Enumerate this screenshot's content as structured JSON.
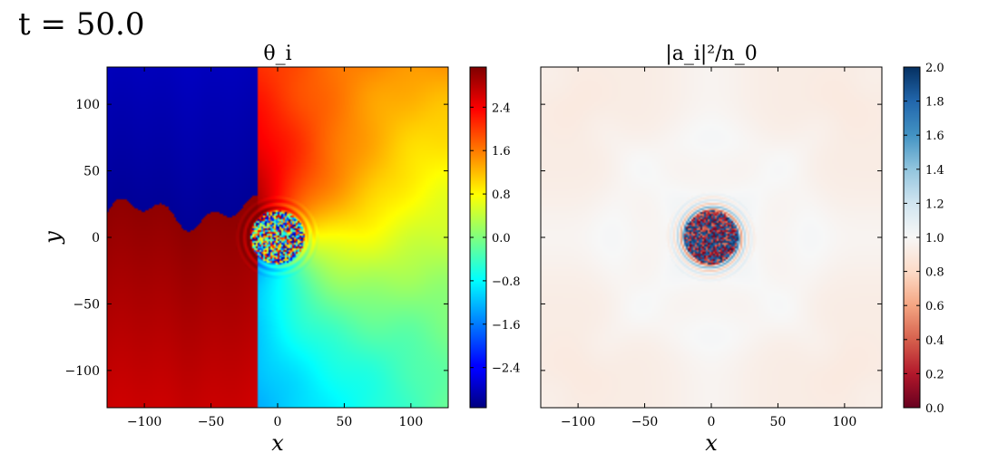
{
  "figure": {
    "time_label": "t = 50.0"
  },
  "chart_data": [
    {
      "type": "heatmap",
      "title": "θ_i",
      "xlabel": "x",
      "ylabel": "y",
      "xlim": [
        -128,
        128
      ],
      "ylim": [
        -128,
        128
      ],
      "xticks": [
        -100,
        -50,
        0,
        50,
        100
      ],
      "xtick_labels": [
        "−100",
        "−50",
        "0",
        "50",
        "100"
      ],
      "yticks": [
        -100,
        -50,
        0,
        50,
        100
      ],
      "ytick_labels": [
        "−100",
        "−50",
        "0",
        "50",
        "100"
      ],
      "colorscale": "jet",
      "vlim": [
        -3.14,
        3.14
      ],
      "colorbar_ticks": [
        -2.4,
        -1.6,
        -0.8,
        0.0,
        0.8,
        1.6,
        2.4
      ],
      "colorbar_tick_labels": [
        "−2.4",
        "−1.6",
        "−0.8",
        "0.0",
        "0.8",
        "1.6",
        "2.4"
      ],
      "core_radius": 20,
      "grid": false
    },
    {
      "type": "heatmap",
      "title": "|a_i|²/n_0",
      "xlabel": "x",
      "ylabel": "",
      "xlim": [
        -128,
        128
      ],
      "ylim": [
        -128,
        128
      ],
      "xticks": [
        -100,
        -50,
        0,
        50,
        100
      ],
      "xtick_labels": [
        "−100",
        "−50",
        "0",
        "50",
        "100"
      ],
      "yticks": [
        -100,
        -50,
        0,
        50,
        100
      ],
      "ytick_labels": [],
      "colorscale": "RdBu",
      "vlim": [
        0.0,
        2.0
      ],
      "colorbar_ticks": [
        0.0,
        0.2,
        0.4,
        0.6,
        0.8,
        1.0,
        1.2,
        1.4,
        1.6,
        1.8,
        2.0
      ],
      "colorbar_tick_labels": [
        "0.0",
        "0.2",
        "0.4",
        "0.6",
        "0.8",
        "1.0",
        "1.2",
        "1.4",
        "1.6",
        "1.8",
        "2.0"
      ],
      "core_radius": 20,
      "grid": false
    }
  ]
}
